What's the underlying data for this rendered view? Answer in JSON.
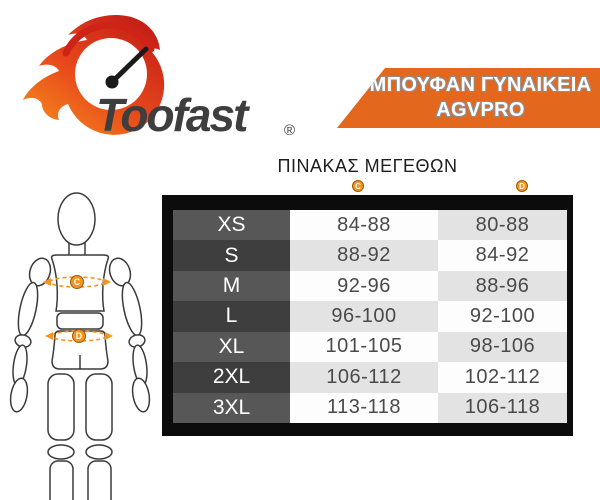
{
  "logo": {
    "brand": "Toofast",
    "registered_mark": "®"
  },
  "banner": {
    "line1": "ΜΠΟΥΦΑΝ ΓΥΝΑΙΚΕΙΑ",
    "line2": "AGVPRO"
  },
  "size_chart": {
    "title": "ΠΙΝΑΚΑΣ ΜΕΓΕΘΩΝ",
    "markers": {
      "c": "C",
      "d": "D"
    },
    "rows": [
      {
        "size": "XS",
        "c": "84-88",
        "d": "80-88"
      },
      {
        "size": "S",
        "c": "88-92",
        "d": "84-92"
      },
      {
        "size": "M",
        "c": "92-96",
        "d": "88-96"
      },
      {
        "size": "L",
        "c": "96-100",
        "d": "92-100"
      },
      {
        "size": "XL",
        "c": "101-105",
        "d": "98-106"
      },
      {
        "size": "2XL",
        "c": "106-112",
        "d": "102-112"
      },
      {
        "size": "3XL",
        "c": "113-118",
        "d": "106-118"
      }
    ]
  },
  "figure": {
    "chest_marker": "C",
    "waist_marker": "D"
  },
  "colors": {
    "banner_orange": "#e4671e",
    "marker_orange": "#f7941d",
    "table_frame": "#0c0c0c",
    "size_row_light": "#575757",
    "size_row_dark": "#3e3e3e",
    "cell_gray": "#e3e3e3"
  },
  "chart_data": {
    "type": "table",
    "title": "ΠΙΝΑΚΑΣ ΜΕΓΕΘΩΝ",
    "columns": [
      "size",
      "C",
      "D"
    ],
    "rows": [
      [
        "XS",
        "84-88",
        "80-88"
      ],
      [
        "S",
        "88-92",
        "84-92"
      ],
      [
        "M",
        "92-96",
        "88-96"
      ],
      [
        "L",
        "96-100",
        "92-100"
      ],
      [
        "XL",
        "101-105",
        "98-106"
      ],
      [
        "2XL",
        "106-112",
        "102-112"
      ],
      [
        "3XL",
        "113-118",
        "106-118"
      ]
    ]
  }
}
